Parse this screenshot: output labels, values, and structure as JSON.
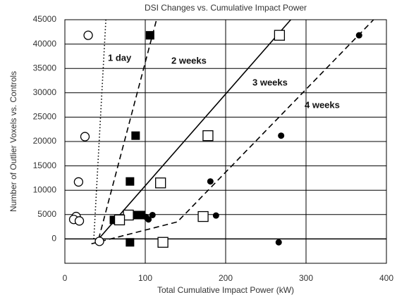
{
  "chart_data": {
    "type": "scatter",
    "title": "DSI Changes  vs. Cumulative Impact Power",
    "x_label": "Total Cumulative Impact Power (kW)",
    "y_label": "Number of Outlier Voxels vs. Controls",
    "xlim": [
      0,
      400
    ],
    "xticks": [
      0,
      100,
      200,
      300,
      400
    ],
    "ylim": [
      -5000,
      45000
    ],
    "yticks": [
      0,
      5000,
      10000,
      15000,
      20000,
      25000,
      30000,
      35000,
      40000,
      45000
    ],
    "grid": true,
    "series": [
      {
        "name": "1 day",
        "marker": "open-circle",
        "color": "#000000",
        "x": [
          29,
          25,
          17,
          14,
          11,
          18,
          43
        ],
        "values": [
          41800,
          21000,
          11700,
          4600,
          4000,
          3700,
          -500
        ],
        "fit": {
          "style": "dotted",
          "x": [
            36,
            51
          ],
          "y": [
            0,
            45000
          ]
        }
      },
      {
        "name": "2 weeks",
        "marker": "filled-square",
        "color": "#000000",
        "x": [
          106,
          88,
          81,
          87,
          61,
          95,
          81
        ],
        "values": [
          41800,
          21200,
          11800,
          4900,
          3900,
          4900,
          -700
        ],
        "fit": {
          "style": "dashed",
          "x": [
            42,
            114
          ],
          "y": [
            0,
            45000
          ]
        }
      },
      {
        "name": "3 weeks",
        "marker": "open-square",
        "color": "#000000",
        "x": [
          267,
          178,
          119,
          79,
          172,
          68,
          122
        ],
        "values": [
          41800,
          21200,
          11500,
          4900,
          4600,
          3900,
          -700
        ],
        "fit": {
          "style": "solid",
          "x": [
            42,
            281
          ],
          "y": [
            0,
            45000
          ]
        }
      },
      {
        "name": "4 weeks",
        "marker": "filled-circle",
        "color": "#000000",
        "x": [
          366,
          269,
          181,
          188,
          109,
          101,
          104,
          266
        ],
        "values": [
          41800,
          21200,
          11800,
          4800,
          4900,
          4500,
          4000,
          -700
        ],
        "fit": {
          "style": "dashed",
          "x": [
            33,
            140,
            384
          ],
          "y": [
            -1000,
            3500,
            45000
          ]
        }
      }
    ]
  }
}
